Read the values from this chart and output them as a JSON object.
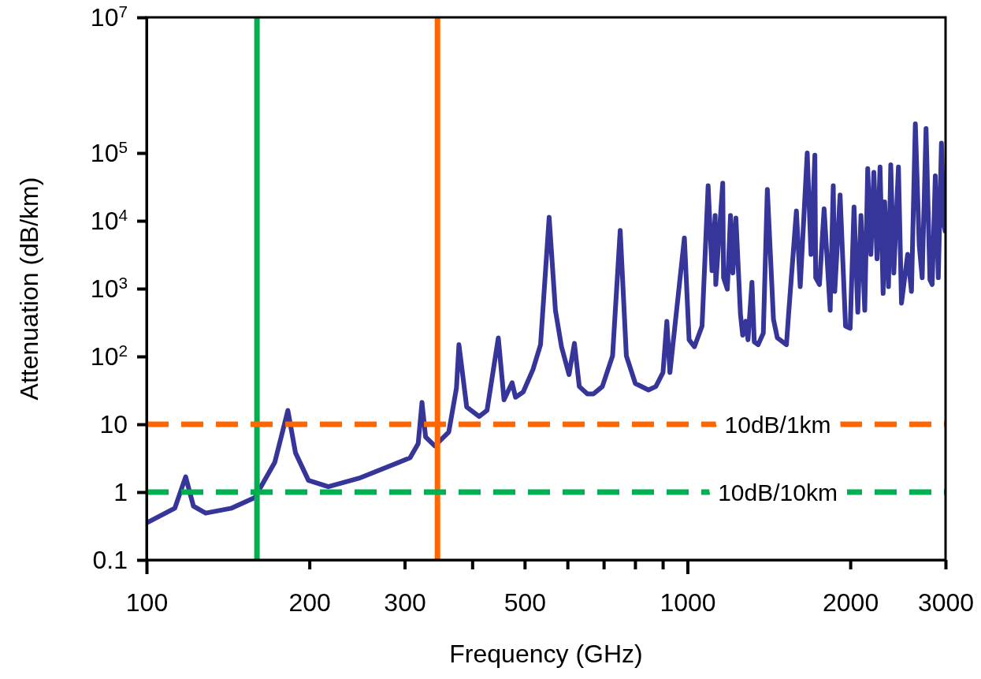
{
  "chart_data": {
    "type": "line",
    "xlabel": "Frequency (GHz)",
    "ylabel": "Attenuation (dB/km)",
    "log": "xy",
    "grid": false,
    "marker": "none",
    "line_style": "solid",
    "xlim": [
      100,
      3000
    ],
    "xticks": [
      100,
      200,
      300,
      {
        "value": 400,
        "label": null
      },
      500,
      {
        "value": 600,
        "label": null
      },
      {
        "value": 700,
        "label": null
      },
      {
        "value": 800,
        "label": null
      },
      {
        "value": 900,
        "label": null
      },
      1000,
      2000,
      3000
    ],
    "ylim": [
      0.1,
      10000000
    ],
    "yticks": [
      0.1,
      1,
      10,
      {
        "value": 100,
        "label": "10$^{2}$"
      },
      {
        "value": 1000,
        "label": "10$^{3}$"
      },
      {
        "value": 10000,
        "label": "10$^{4}$"
      },
      {
        "value": 100000,
        "label": "10$^{5}$"
      },
      {
        "value": 10000000,
        "label": "10$^{7}$"
      }
    ],
    "ref_lines": [
      {
        "axis": "x",
        "value": 160,
        "color": "#00b050",
        "line_style": "solid"
      },
      {
        "axis": "x",
        "value": 345,
        "color": "#ff6600",
        "line_style": "solid"
      },
      {
        "axis": "y",
        "value": 10,
        "label": "10dB/1km",
        "color": "#ff6600",
        "line_style": "dashed"
      },
      {
        "axis": "y",
        "value": 1,
        "label": "10dB/10km",
        "color": "#00b050",
        "line_style": "dashed"
      }
    ],
    "series": [
      {
        "color": "#35359a",
        "x": [
          100,
          112.8,
          118.1,
          122.1,
          128.6,
          143.7,
          158.5,
          172.6,
          182.5,
          188.5,
          199.2,
          216.8,
          247,
          307,
          317.8,
          323,
          328,
          341,
          362,
          374,
          378,
          390.7,
          412,
          426,
          447,
          458,
          474,
          481,
          497,
          518,
          535,
          555,
          570,
          585,
          604,
          618,
          631,
          653,
          670,
          696,
          727,
          751,
          771,
          801,
          847,
          874,
          901,
          916,
          928,
          934,
          987,
          1007,
          1030,
          1064,
          1092,
          1110,
          1125,
          1128,
          1162,
          1166,
          1185,
          1201,
          1213,
          1229,
          1253,
          1265,
          1282,
          1294,
          1316,
          1329,
          1351,
          1381,
          1405,
          1442,
          1466,
          1524,
          1539,
          1590,
          1616,
          1665,
          1692,
          1720,
          1726,
          1754,
          1789,
          1836,
          1860,
          1872,
          1915,
          1960,
          1999,
          2032,
          2065,
          2093,
          2127,
          2154,
          2183,
          2211,
          2241,
          2270,
          2300,
          2315,
          2353,
          2376,
          2407,
          2455,
          2487,
          2553,
          2595,
          2638,
          2682,
          2716,
          2761,
          2807,
          2834,
          2872,
          2909,
          2948,
          2977,
          2996
        ],
        "values": [
          0.35,
          0.58,
          1.68,
          0.62,
          0.49,
          0.58,
          0.83,
          2.75,
          16,
          3.8,
          1.49,
          1.2,
          1.6,
          3.2,
          5.2,
          21,
          6.5,
          4.8,
          7.7,
          34,
          149,
          18,
          13,
          16,
          188,
          23,
          41,
          25,
          30,
          64,
          149,
          11300,
          480,
          139,
          54,
          156,
          36,
          28,
          28,
          36,
          102,
          7200,
          102,
          40,
          32,
          36,
          58,
          330,
          58,
          93,
          5600,
          176,
          139,
          280,
          33000,
          1840,
          12000,
          1150,
          36000,
          1450,
          980,
          12000,
          1700,
          11000,
          420,
          206,
          330,
          176,
          1240,
          164,
          149,
          220,
          29000,
          354,
          188,
          149,
          450,
          14000,
          1070,
          100000,
          3200,
          93000,
          1450,
          1150,
          15000,
          480,
          33000,
          910,
          24000,
          280,
          260,
          16000,
          450,
          12000,
          480,
          59000,
          3200,
          52000,
          2750,
          62000,
          850,
          19000,
          1070,
          67000,
          1700,
          62000,
          610,
          3200,
          910,
          270000,
          4400,
          1450,
          230000,
          1350,
          1150,
          46000,
          1450,
          140000,
          8900,
          7000
        ]
      }
    ]
  }
}
